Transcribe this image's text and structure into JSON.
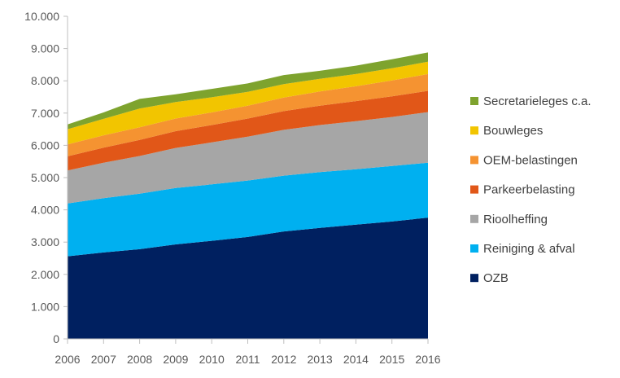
{
  "chart_data": {
    "type": "area",
    "stacked": true,
    "x": [
      "2006",
      "2007",
      "2008",
      "2009",
      "2010",
      "2011",
      "2012",
      "2013",
      "2014",
      "2015",
      "2016"
    ],
    "ylim": [
      0,
      10000
    ],
    "yticks": [
      "0",
      "1.000",
      "2.000",
      "3.000",
      "4.000",
      "5.000",
      "6.000",
      "7.000",
      "8.000",
      "9.000",
      "10.000"
    ],
    "grid": false,
    "legend_position": "right",
    "series": [
      {
        "name": "OZB",
        "color": "#002060",
        "values": [
          2560,
          2680,
          2780,
          2930,
          3040,
          3160,
          3330,
          3440,
          3540,
          3640,
          3760
        ]
      },
      {
        "name": "Reiniging & afval",
        "color": "#00B0F0",
        "values": [
          1640,
          1680,
          1720,
          1750,
          1750,
          1750,
          1730,
          1730,
          1720,
          1720,
          1700
        ]
      },
      {
        "name": "Rioolheffing",
        "color": "#A6A6A6",
        "values": [
          1020,
          1100,
          1170,
          1240,
          1300,
          1360,
          1420,
          1460,
          1490,
          1520,
          1570
        ]
      },
      {
        "name": "Parkeerbelasting",
        "color": "#E15718",
        "values": [
          440,
          470,
          500,
          520,
          540,
          560,
          580,
          600,
          620,
          640,
          660
        ]
      },
      {
        "name": "OEM-belastingen",
        "color": "#F59331",
        "values": [
          370,
          380,
          390,
          390,
          390,
          400,
          420,
          440,
          460,
          490,
          520
        ]
      },
      {
        "name": "Bouwleges",
        "color": "#F2C500",
        "values": [
          470,
          510,
          580,
          510,
          470,
          430,
          420,
          390,
          380,
          380,
          380
        ]
      },
      {
        "name": "Secretarieleges c.a.",
        "color": "#7EA32E",
        "values": [
          150,
          200,
          300,
          240,
          260,
          260,
          280,
          250,
          260,
          280,
          290
        ]
      }
    ]
  }
}
